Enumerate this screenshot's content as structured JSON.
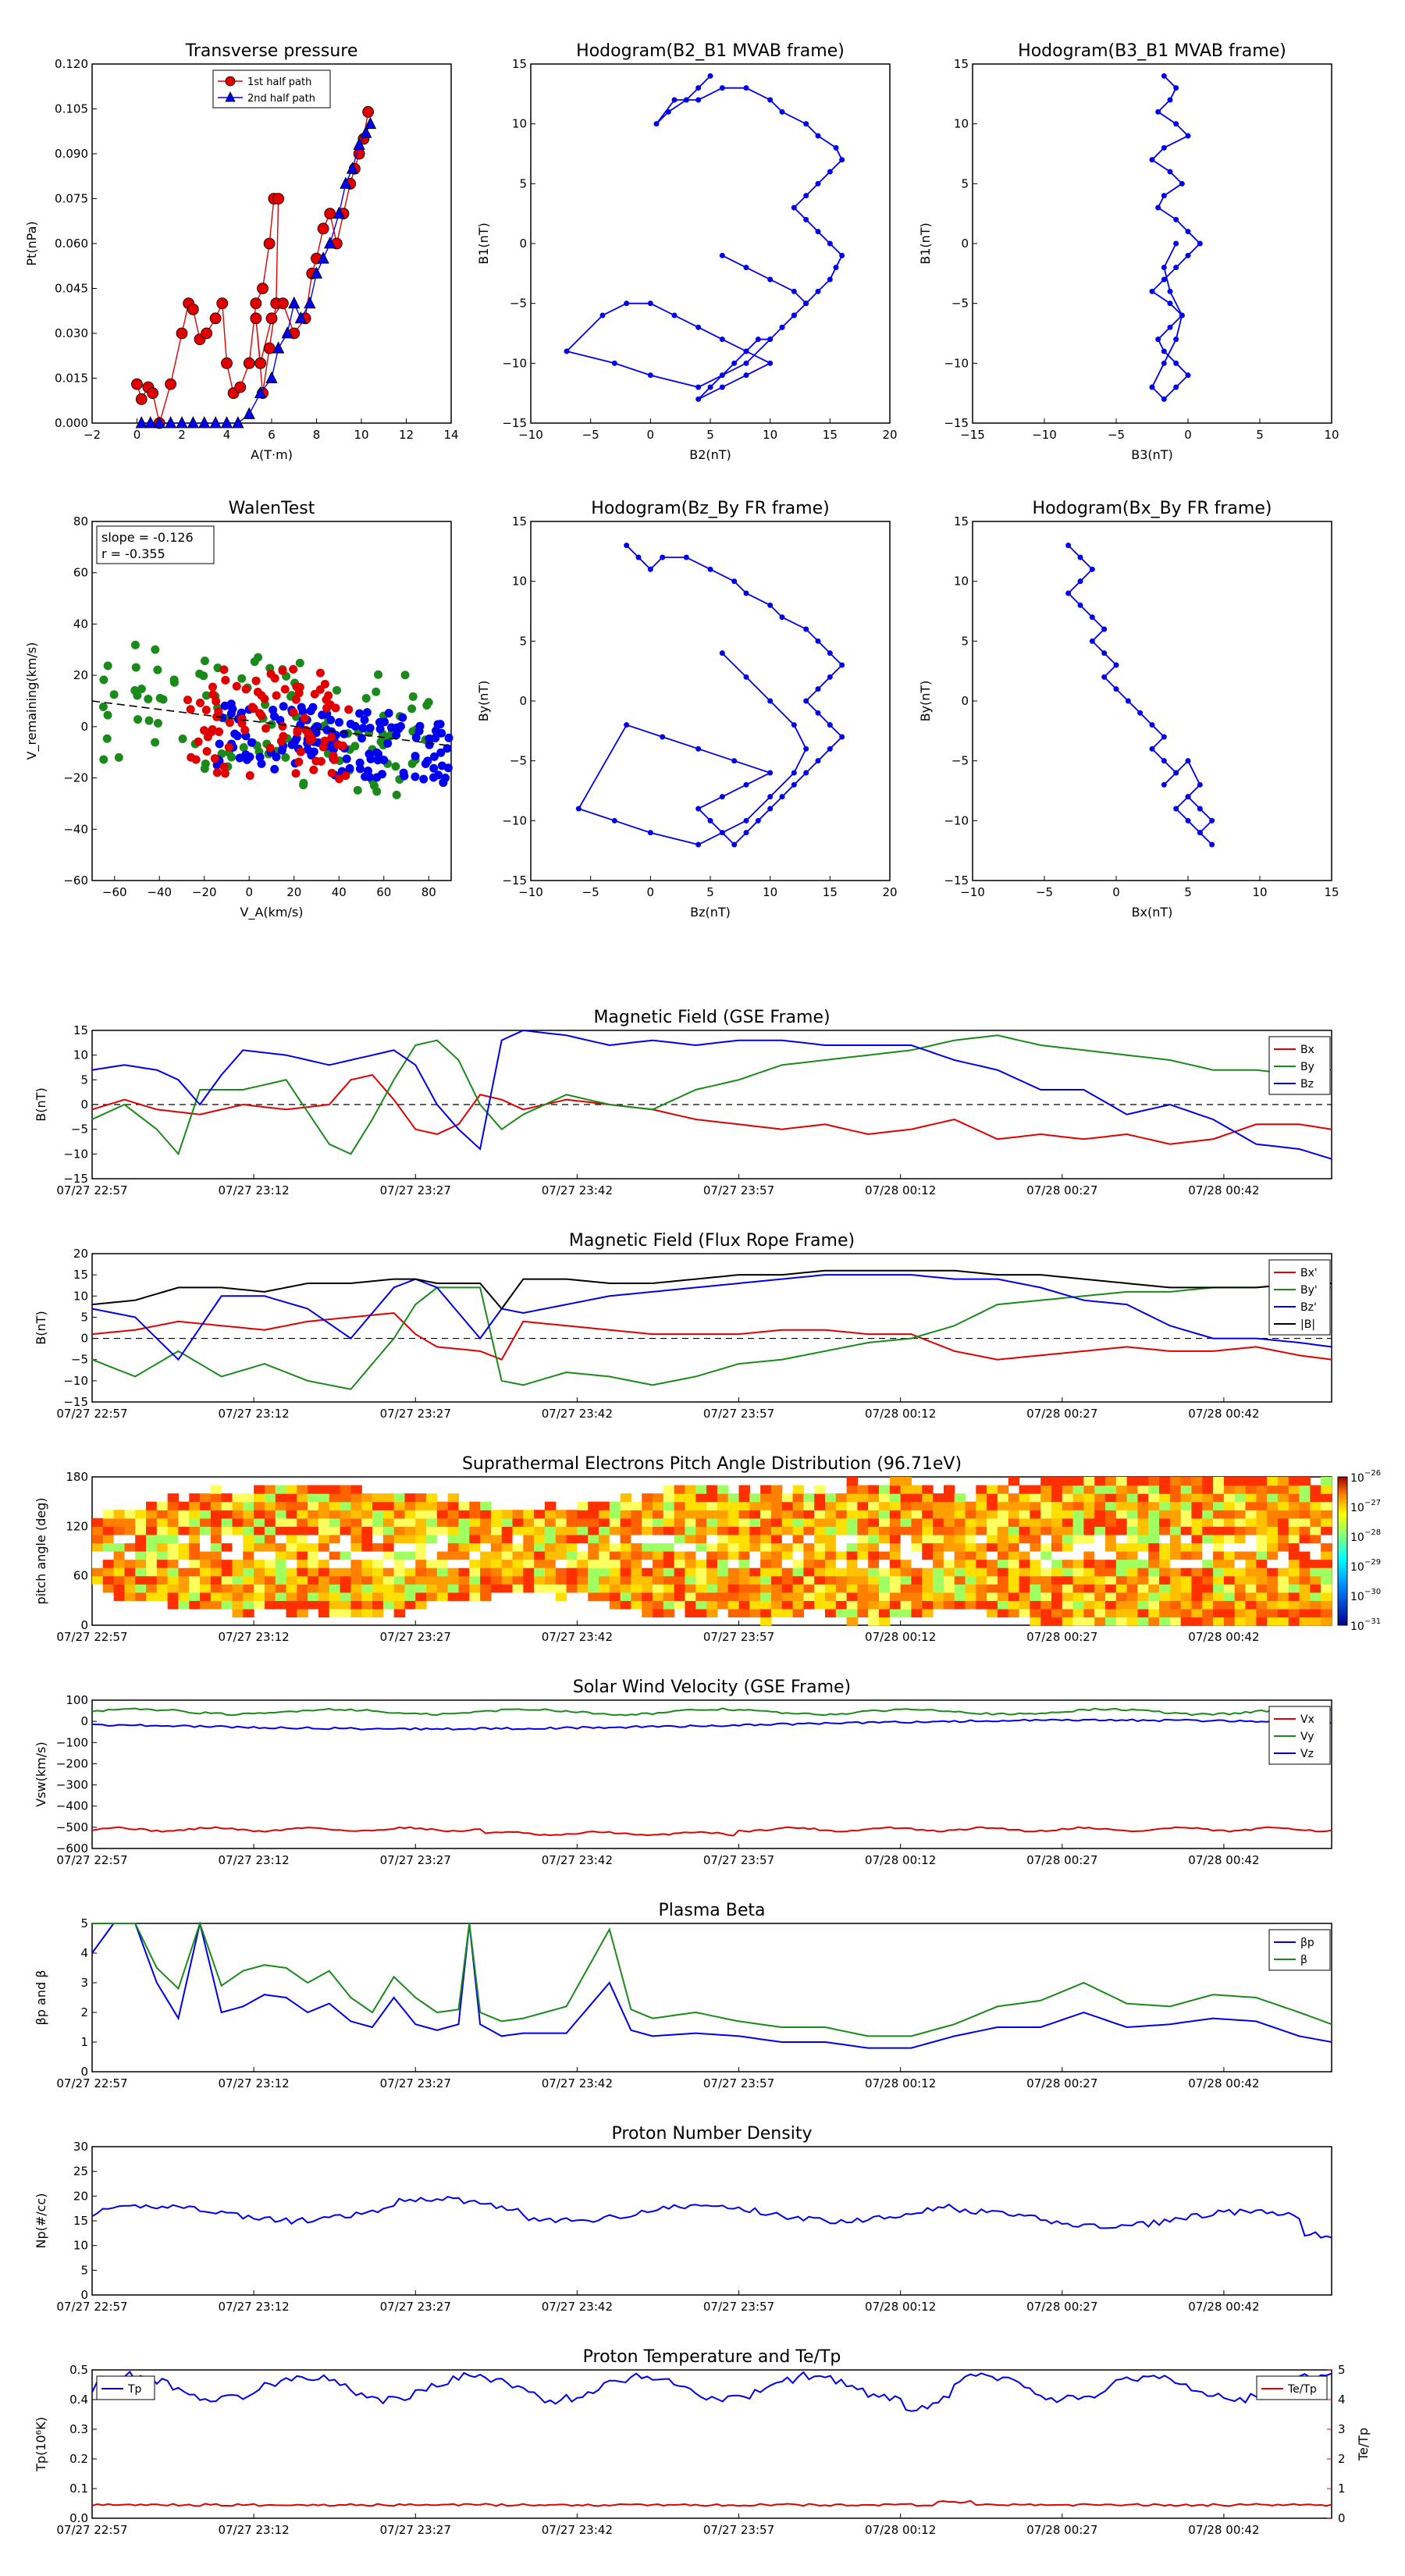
{
  "colors": {
    "red": "#e00000",
    "green": "#1a8a1a",
    "blue": "#0000ee",
    "black": "#000000",
    "redaxis": "#ff0000"
  },
  "top_row": {
    "pt": {
      "title": "Transverse pressure",
      "xlabel": "A(T·m)",
      "ylabel": "Pt(nPa)",
      "xticks": [
        "−2",
        "0",
        "2",
        "4",
        "6",
        "8",
        "10",
        "12",
        "14"
      ],
      "yticks": [
        "0.000",
        "0.015",
        "0.030",
        "0.045",
        "0.060",
        "0.075",
        "0.090",
        "0.105",
        "0.120"
      ],
      "legend": [
        "1st half path",
        "2nd half path"
      ]
    },
    "h1": {
      "title": "Hodogram(B2_B1 MVAB frame)",
      "xlabel": "B2(nT)",
      "ylabel": "B1(nT)",
      "xticks": [
        "−10",
        "−5",
        "0",
        "5",
        "10",
        "15",
        "20"
      ],
      "yticks": [
        "−15",
        "−10",
        "−5",
        "0",
        "5",
        "10",
        "15"
      ]
    },
    "h2": {
      "title": "Hodogram(B3_B1 MVAB frame)",
      "xlabel": "B3(nT)",
      "ylabel": "B1(nT)",
      "xticks": [
        "−15",
        "−10",
        "−5",
        "0",
        "5",
        "10"
      ],
      "yticks": [
        "−15",
        "−10",
        "−5",
        "0",
        "5",
        "10",
        "15"
      ]
    }
  },
  "mid_row": {
    "walen": {
      "title": "WalenTest",
      "xlabel": "V_A(km/s)",
      "ylabel": "V_remaining(km/s)",
      "xticks": [
        "−60",
        "−40",
        "−20",
        "0",
        "20",
        "40",
        "60",
        "80"
      ],
      "yticks": [
        "−60",
        "−40",
        "−20",
        "0",
        "20",
        "40",
        "60",
        "80"
      ],
      "slope_text": "slope = -0.126",
      "r_text": "r = -0.355"
    },
    "h3": {
      "title": "Hodogram(Bz_By FR frame)",
      "xlabel": "Bz(nT)",
      "ylabel": "By(nT)",
      "xticks": [
        "−10",
        "−5",
        "0",
        "5",
        "10",
        "15",
        "20"
      ],
      "yticks": [
        "−15",
        "−10",
        "−5",
        "0",
        "5",
        "10",
        "15"
      ]
    },
    "h4": {
      "title": "Hodogram(Bx_By FR frame)",
      "xlabel": "Bx(nT)",
      "ylabel": "By(nT)",
      "xticks": [
        "−10",
        "−5",
        "0",
        "5",
        "10",
        "15"
      ],
      "yticks": [
        "−15",
        "−10",
        "−5",
        "0",
        "5",
        "10",
        "15"
      ]
    }
  },
  "time_ticks": [
    "07/27 22:57",
    "07/27 23:12",
    "07/27 23:27",
    "07/27 23:42",
    "07/27 23:57",
    "07/28 00:12",
    "07/28 00:27",
    "07/28 00:42"
  ],
  "panels": {
    "bgse": {
      "title": "Magnetic Field (GSE Frame)",
      "ylabel": "B(nT)",
      "yticks": [
        "−15",
        "−10",
        "−5",
        "0",
        "5",
        "10",
        "15"
      ],
      "legend": [
        "Bx",
        "By",
        "Bz"
      ]
    },
    "bfr": {
      "title": "Magnetic Field (Flux Rope Frame)",
      "ylabel": "B(nT)",
      "yticks": [
        "−15",
        "−10",
        "−5",
        "0",
        "5",
        "10",
        "15",
        "20"
      ],
      "legend": [
        "Bx'",
        "By'",
        "Bz'",
        "|B|"
      ]
    },
    "pad": {
      "title": "Suprathermal Electrons Pitch Angle Distribution (96.71eV)",
      "ylabel": "pitch angle (deg)",
      "yticks": [
        "0",
        "60",
        "120",
        "180"
      ],
      "cbar_ticks": [
        "10",
        "10",
        "10",
        "10",
        "10",
        "10"
      ],
      "cbar_exps": [
        "−31",
        "−30",
        "−29",
        "−28",
        "−27",
        "−26"
      ]
    },
    "vsw": {
      "title": "Solar Wind Velocity (GSE Frame)",
      "ylabel": "Vsw(km/s)",
      "yticks": [
        "−600",
        "−500",
        "−400",
        "−300",
        "−200",
        "−100",
        "0",
        "100"
      ],
      "legend": [
        "Vx",
        "Vy",
        "Vz"
      ]
    },
    "beta": {
      "title": "Plasma Beta",
      "ylabel": "βp and β",
      "yticks": [
        "0",
        "1",
        "2",
        "3",
        "4",
        "5"
      ],
      "legend": [
        "βp",
        "β"
      ]
    },
    "np": {
      "title": "Proton Number Density",
      "ylabel": "Np(#/cc)",
      "yticks": [
        "0",
        "5",
        "10",
        "15",
        "20",
        "25",
        "30"
      ]
    },
    "tp": {
      "title": "Proton Temperature and Te/Tp",
      "ylabel": "Tp(10⁶K)",
      "yticks": [
        "0.0",
        "0.1",
        "0.2",
        "0.3",
        "0.4",
        "0.5"
      ],
      "y2label": "Te/Tp",
      "y2ticks": [
        "0",
        "1",
        "2",
        "3",
        "4",
        "5"
      ],
      "legend": [
        "Tp"
      ],
      "legend2": [
        "Te/Tp"
      ]
    }
  },
  "chart_data": [
    {
      "type": "scatter",
      "name": "Transverse pressure",
      "series": [
        {
          "name": "1st half path",
          "x": [
            0,
            0.2,
            0.5,
            0.7,
            1.0,
            1.5,
            2.0,
            2.3,
            2.5,
            2.8,
            3.1,
            3.5,
            3.8,
            4.0,
            4.3,
            4.6,
            5.0,
            5.3,
            5.6,
            5.9,
            6.1,
            6.3,
            6.2,
            5.9,
            5.6,
            5.3,
            5.5,
            6.0,
            6.5,
            7.0,
            7.5,
            7.8,
            8.0,
            8.3,
            8.6,
            8.9,
            9.2,
            9.5,
            9.7,
            9.9,
            10.1,
            10.3
          ],
          "y": [
            0.013,
            0.008,
            0.012,
            0.01,
            0.0,
            0.013,
            0.03,
            0.04,
            0.038,
            0.028,
            0.03,
            0.035,
            0.04,
            0.02,
            0.01,
            0.012,
            0.02,
            0.04,
            0.045,
            0.06,
            0.075,
            0.075,
            0.04,
            0.025,
            0.01,
            0.035,
            0.02,
            0.035,
            0.04,
            0.03,
            0.035,
            0.05,
            0.055,
            0.065,
            0.07,
            0.06,
            0.07,
            0.08,
            0.085,
            0.09,
            0.095,
            0.104
          ]
        },
        {
          "name": "2nd half path",
          "x": [
            0.2,
            0.6,
            1.0,
            1.5,
            2.0,
            2.5,
            3.0,
            3.5,
            4.0,
            4.5,
            5.0,
            5.5,
            6.0,
            6.3,
            6.7,
            7.0,
            7.3,
            7.7,
            8.0,
            8.3,
            8.6,
            9.0,
            9.3,
            9.6,
            9.9,
            10.2,
            10.4
          ],
          "y": [
            0.0,
            0.0,
            0.0,
            0.0,
            0.0,
            0.0,
            0.0,
            0.0,
            0.0,
            0.0,
            0.003,
            0.01,
            0.015,
            0.025,
            0.03,
            0.04,
            0.035,
            0.04,
            0.05,
            0.055,
            0.06,
            0.07,
            0.08,
            0.085,
            0.093,
            0.097,
            0.1
          ]
        }
      ],
      "xlim": [
        -2,
        14
      ],
      "ylim": [
        0,
        0.12
      ]
    },
    {
      "type": "line",
      "name": "Hodogram B2_B1",
      "x": [
        5,
        4,
        3,
        1.5,
        0.5,
        2,
        4,
        6,
        8,
        10,
        11,
        13,
        14,
        15.5,
        16,
        15,
        14,
        13,
        12,
        13,
        14,
        15,
        16,
        15.5,
        15,
        14,
        13,
        12,
        11,
        10,
        9,
        8,
        7,
        6,
        5,
        4,
        6,
        8,
        10,
        8,
        6,
        4,
        2,
        0,
        -2,
        -4,
        -7,
        -3,
        0,
        4,
        8,
        10,
        11,
        12,
        13,
        12,
        10,
        8,
        6
      ],
      "y": [
        14,
        13,
        12,
        11,
        10,
        12,
        12,
        13,
        13,
        12,
        11,
        10,
        9,
        8,
        7,
        6,
        5,
        4,
        3,
        2,
        1,
        0,
        -1,
        -2,
        -3,
        -4,
        -5,
        -6,
        -7,
        -8,
        -8,
        -9,
        -10,
        -11,
        -12,
        -13,
        -12,
        -11,
        -10,
        -9,
        -8,
        -7,
        -6,
        -5,
        -5,
        -6,
        -9,
        -10,
        -11,
        -12,
        -10,
        -8,
        -7,
        -6,
        -5,
        -4,
        -3,
        -2,
        -1
      ]
    },
    {
      "type": "line",
      "name": "Hodogram B3_B1",
      "x": [
        0,
        1,
        0.5,
        -0.5,
        1,
        2,
        0,
        -1,
        0.5,
        1.5,
        0,
        -0.5,
        1,
        2,
        3,
        2,
        1,
        0,
        -1,
        0.5,
        1.5,
        0.5,
        -0.5,
        0,
        1,
        2,
        1,
        0,
        -1,
        0,
        1,
        1.5,
        0.5,
        0,
        1
      ],
      "y": [
        14,
        13,
        12,
        11,
        10,
        9,
        8,
        7,
        6,
        5,
        4,
        3,
        2,
        1,
        0,
        -1,
        -2,
        -3,
        -4,
        -5,
        -6,
        -7,
        -8,
        -9,
        -10,
        -11,
        -12,
        -13,
        -12,
        -10,
        -8,
        -6,
        -4,
        -2,
        0
      ]
    },
    {
      "type": "scatter",
      "name": "WalenTest",
      "xlim": [
        -70,
        90
      ],
      "ylim": [
        -70,
        90
      ],
      "slope": -0.126,
      "r": -0.355
    },
    {
      "type": "line",
      "name": "Hodogram Bz_By FR",
      "x": [
        -2,
        -1,
        0,
        1,
        3,
        5,
        7,
        8,
        10,
        11,
        13,
        14,
        15,
        16,
        15,
        14,
        13,
        14,
        15,
        16,
        15,
        14,
        13,
        12,
        11,
        10,
        9,
        8,
        7,
        6,
        5,
        4,
        6,
        8,
        10,
        7,
        4,
        1,
        -2,
        -6,
        -3,
        0,
        4,
        8,
        10,
        12,
        13,
        12,
        10,
        8,
        6
      ],
      "y": [
        13,
        12,
        11,
        12,
        12,
        11,
        10,
        9,
        8,
        7,
        6,
        5,
        4,
        3,
        2,
        1,
        0,
        -1,
        -2,
        -3,
        -4,
        -5,
        -6,
        -7,
        -8,
        -9,
        -10,
        -11,
        -12,
        -11,
        -10,
        -9,
        -8,
        -7,
        -6,
        -5,
        -4,
        -3,
        -2,
        -9,
        -10,
        -11,
        -12,
        -10,
        -8,
        -6,
        -4,
        -2,
        0,
        2,
        4
      ]
    },
    {
      "type": "line",
      "name": "Hodogram Bx_By FR",
      "x": [
        -6,
        -5,
        -4,
        -5,
        -6,
        -5,
        -4,
        -3,
        -4,
        -3,
        -2,
        -3,
        -2,
        -1,
        0,
        1,
        2,
        1,
        2,
        3,
        2,
        3,
        4,
        5,
        4,
        3,
        4,
        5,
        6,
        5,
        6,
        5,
        4
      ],
      "y": [
        13,
        12,
        11,
        10,
        9,
        8,
        7,
        6,
        5,
        4,
        3,
        2,
        1,
        0,
        -1,
        -2,
        -3,
        -4,
        -5,
        -6,
        -7,
        -6,
        -5,
        -7,
        -8,
        -9,
        -10,
        -11,
        -12,
        -11,
        -10,
        -9,
        -8
      ]
    },
    {
      "type": "line",
      "name": "Magnetic Field (GSE Frame)",
      "x_range_min": [
        0,
        115
      ],
      "series": [
        {
          "name": "Bx",
          "x": [
            0,
            3,
            6,
            10,
            14,
            18,
            22,
            24,
            26,
            28,
            30,
            32,
            34,
            36,
            38,
            40,
            44,
            48,
            52,
            56,
            60,
            64,
            68,
            72,
            76,
            80,
            84,
            88,
            92,
            96,
            100,
            104,
            108,
            112,
            115
          ],
          "y": [
            -1,
            1,
            -1,
            -2,
            0,
            -1,
            0,
            5,
            6,
            1,
            -5,
            -6,
            -4,
            2,
            1,
            -1,
            1,
            0,
            -1,
            -3,
            -4,
            -5,
            -4,
            -6,
            -5,
            -3,
            -7,
            -6,
            -7,
            -6,
            -8,
            -7,
            -4,
            -4,
            -5
          ]
        },
        {
          "name": "By",
          "x": [
            0,
            3,
            6,
            8,
            10,
            14,
            18,
            22,
            24,
            26,
            28,
            30,
            32,
            34,
            36,
            38,
            40,
            44,
            48,
            52,
            56,
            60,
            64,
            68,
            72,
            76,
            80,
            84,
            88,
            92,
            96,
            100,
            104,
            108,
            112,
            115
          ],
          "y": [
            -3,
            0,
            -5,
            -10,
            3,
            3,
            5,
            -8,
            -10,
            -3,
            5,
            12,
            13,
            9,
            0,
            -5,
            -2,
            2,
            0,
            -1,
            3,
            5,
            8,
            9,
            10,
            11,
            13,
            14,
            12,
            11,
            10,
            9,
            7,
            7,
            6,
            7
          ]
        },
        {
          "name": "Bz",
          "x": [
            0,
            3,
            6,
            8,
            10,
            12,
            14,
            18,
            22,
            26,
            28,
            30,
            32,
            34,
            36,
            38,
            40,
            44,
            48,
            52,
            56,
            60,
            64,
            68,
            72,
            76,
            80,
            84,
            88,
            92,
            96,
            100,
            104,
            108,
            112,
            115
          ],
          "y": [
            7,
            8,
            7,
            5,
            0,
            6,
            11,
            10,
            8,
            10,
            11,
            8,
            0,
            -5,
            -9,
            13,
            15,
            14,
            12,
            13,
            12,
            13,
            13,
            12,
            12,
            12,
            9,
            7,
            3,
            3,
            -2,
            0,
            -3,
            -8,
            -9,
            -11
          ]
        }
      ]
    },
    {
      "type": "line",
      "name": "Magnetic Field (Flux Rope Frame)",
      "series": [
        {
          "name": "Bx'"
        },
        {
          "name": "By'"
        },
        {
          "name": "Bz'"
        },
        {
          "name": "|B|"
        }
      ]
    },
    {
      "type": "heatmap",
      "name": "Suprathermal Electrons Pitch Angle Distribution (96.71eV)",
      "ylim": [
        0,
        180
      ]
    },
    {
      "type": "line",
      "name": "Solar Wind Velocity (GSE Frame)",
      "ylim": [
        -600,
        100
      ],
      "series": [
        {
          "name": "Vx",
          "y_approx": -510
        },
        {
          "name": "Vy",
          "y_approx": 40
        },
        {
          "name": "Vz",
          "y_approx": -20
        }
      ]
    },
    {
      "type": "line",
      "name": "Plasma Beta",
      "ylim": [
        0,
        5
      ],
      "series": [
        {
          "name": "βp"
        },
        {
          "name": "β"
        }
      ]
    },
    {
      "type": "line",
      "name": "Proton Number Density",
      "ylim": [
        0,
        30
      ],
      "series": [
        {
          "name": "Np",
          "y_approx": 16
        }
      ]
    },
    {
      "type": "line",
      "name": "Proton Temperature and Te/Tp",
      "ylim": [
        0,
        0.5
      ],
      "y2lim": [
        0,
        5
      ],
      "series": [
        {
          "name": "Tp",
          "y_approx": 0.45
        },
        {
          "name": "Te/Tp",
          "y_approx": 0.4
        }
      ]
    }
  ]
}
